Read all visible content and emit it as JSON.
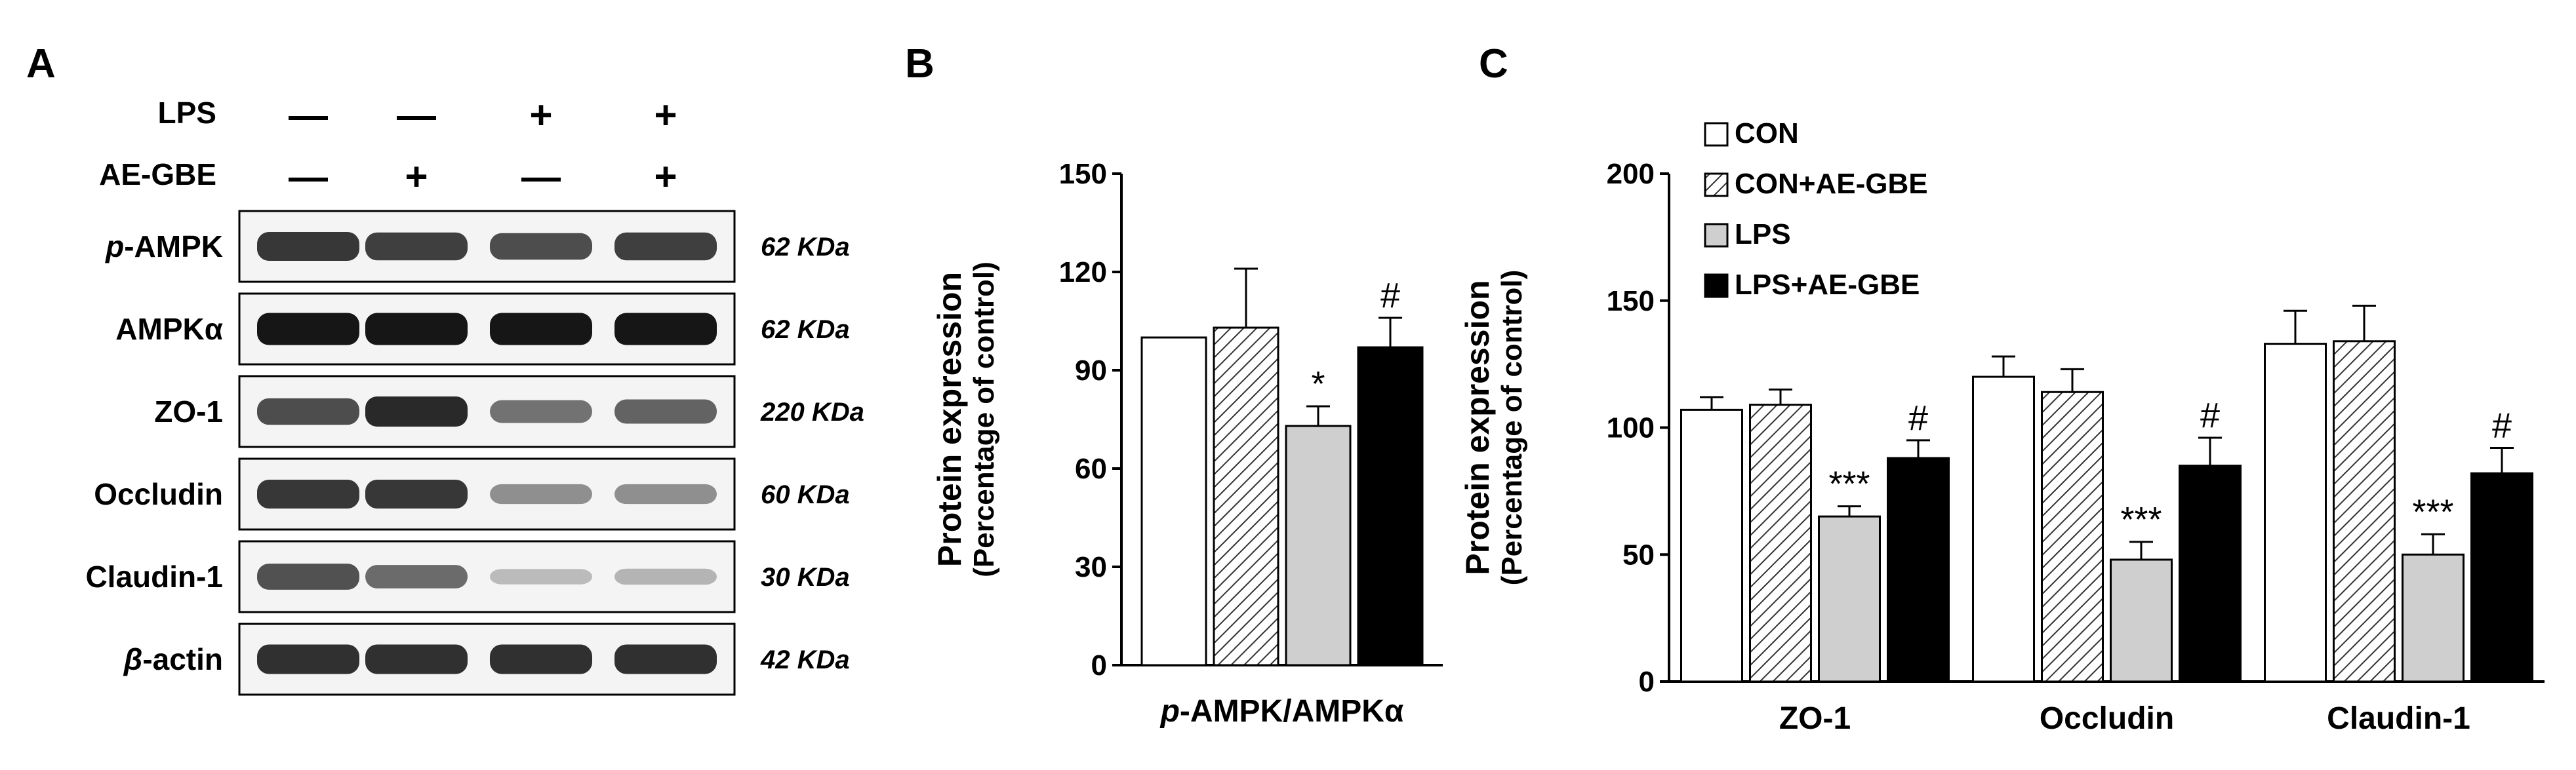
{
  "panels": {
    "a": "A",
    "b": "B",
    "c": "C"
  },
  "blot": {
    "conditions": [
      {
        "label": "LPS",
        "signs": [
          "—",
          "—",
          "+",
          "+"
        ]
      },
      {
        "label": "AE-GBE",
        "signs": [
          "—",
          "+",
          "—",
          "+"
        ]
      }
    ],
    "bands": [
      {
        "pre": "p",
        "label": "-AMPK",
        "kda": "62 KDa",
        "intensity": [
          0.82,
          0.78,
          0.72,
          0.78
        ]
      },
      {
        "pre": "",
        "label": "AMPKα",
        "kda": "62 KDa",
        "intensity": [
          0.97,
          0.97,
          0.97,
          0.97
        ]
      },
      {
        "pre": "",
        "label": "ZO-1",
        "kda": "220 KDa",
        "intensity": [
          0.72,
          0.88,
          0.55,
          0.62
        ]
      },
      {
        "pre": "",
        "label": "Occludin",
        "kda": "60 KDa",
        "intensity": [
          0.82,
          0.82,
          0.42,
          0.42
        ]
      },
      {
        "pre": "",
        "label": "Claudin-1",
        "kda": "30 KDa",
        "intensity": [
          0.7,
          0.58,
          0.22,
          0.25
        ]
      },
      {
        "pre": "β",
        "label": "-actin",
        "kda": "42 KDa",
        "intensity": [
          0.85,
          0.85,
          0.85,
          0.85
        ]
      }
    ]
  },
  "styles": {
    "CON": {
      "fill": "#ffffff",
      "pattern": "none"
    },
    "CON+AE-GBE": {
      "fill": "#ffffff",
      "pattern": "hatch"
    },
    "LPS": {
      "fill": "#cfcfcf",
      "pattern": "none"
    },
    "LPS+AE-GBE": {
      "fill": "#000000",
      "pattern": "none"
    }
  },
  "chart_data": [
    {
      "type": "bar",
      "panel": "B",
      "ylabel": "Protein expression",
      "ylabel2": "(Percentage of control)",
      "ylim": [
        0,
        150
      ],
      "yticks": [
        "0",
        "30",
        "60",
        "90",
        "120",
        "150"
      ],
      "xlabel_pre": "p",
      "xlabel": "-AMPK/AMPKα",
      "groups": [
        {
          "bars": [
            {
              "series": "CON",
              "value": 100,
              "err": 0,
              "sig": ""
            },
            {
              "series": "CON+AE-GBE",
              "value": 103,
              "err": 18,
              "sig": ""
            },
            {
              "series": "LPS",
              "value": 73,
              "err": 6,
              "sig": "*"
            },
            {
              "series": "LPS+AE-GBE",
              "value": 97,
              "err": 9,
              "sig": "#"
            }
          ]
        }
      ]
    },
    {
      "type": "bar",
      "panel": "C",
      "ylabel": "Protein expression",
      "ylabel2": "(Percentage of control)",
      "ylim": [
        0,
        200
      ],
      "yticks": [
        "0",
        "50",
        "100",
        "150",
        "200"
      ],
      "categories": [
        "ZO-1",
        "Occludin",
        "Claudin-1"
      ],
      "legend": [
        "CON",
        "CON+AE-GBE",
        "LPS",
        "LPS+AE-GBE"
      ],
      "legend_position": "top-left",
      "groups": [
        {
          "bars": [
            {
              "series": "CON",
              "value": 107,
              "err": 5,
              "sig": ""
            },
            {
              "series": "CON+AE-GBE",
              "value": 109,
              "err": 6,
              "sig": ""
            },
            {
              "series": "LPS",
              "value": 65,
              "err": 4,
              "sig": "***"
            },
            {
              "series": "LPS+AE-GBE",
              "value": 88,
              "err": 7,
              "sig": "#"
            }
          ]
        },
        {
          "bars": [
            {
              "series": "CON",
              "value": 120,
              "err": 8,
              "sig": ""
            },
            {
              "series": "CON+AE-GBE",
              "value": 114,
              "err": 9,
              "sig": ""
            },
            {
              "series": "LPS",
              "value": 48,
              "err": 7,
              "sig": "***"
            },
            {
              "series": "LPS+AE-GBE",
              "value": 85,
              "err": 11,
              "sig": "#"
            }
          ]
        },
        {
          "bars": [
            {
              "series": "CON",
              "value": 133,
              "err": 13,
              "sig": ""
            },
            {
              "series": "CON+AE-GBE",
              "value": 134,
              "err": 14,
              "sig": ""
            },
            {
              "series": "LPS",
              "value": 50,
              "err": 8,
              "sig": "***"
            },
            {
              "series": "LPS+AE-GBE",
              "value": 82,
              "err": 10,
              "sig": "#"
            }
          ]
        }
      ]
    }
  ]
}
